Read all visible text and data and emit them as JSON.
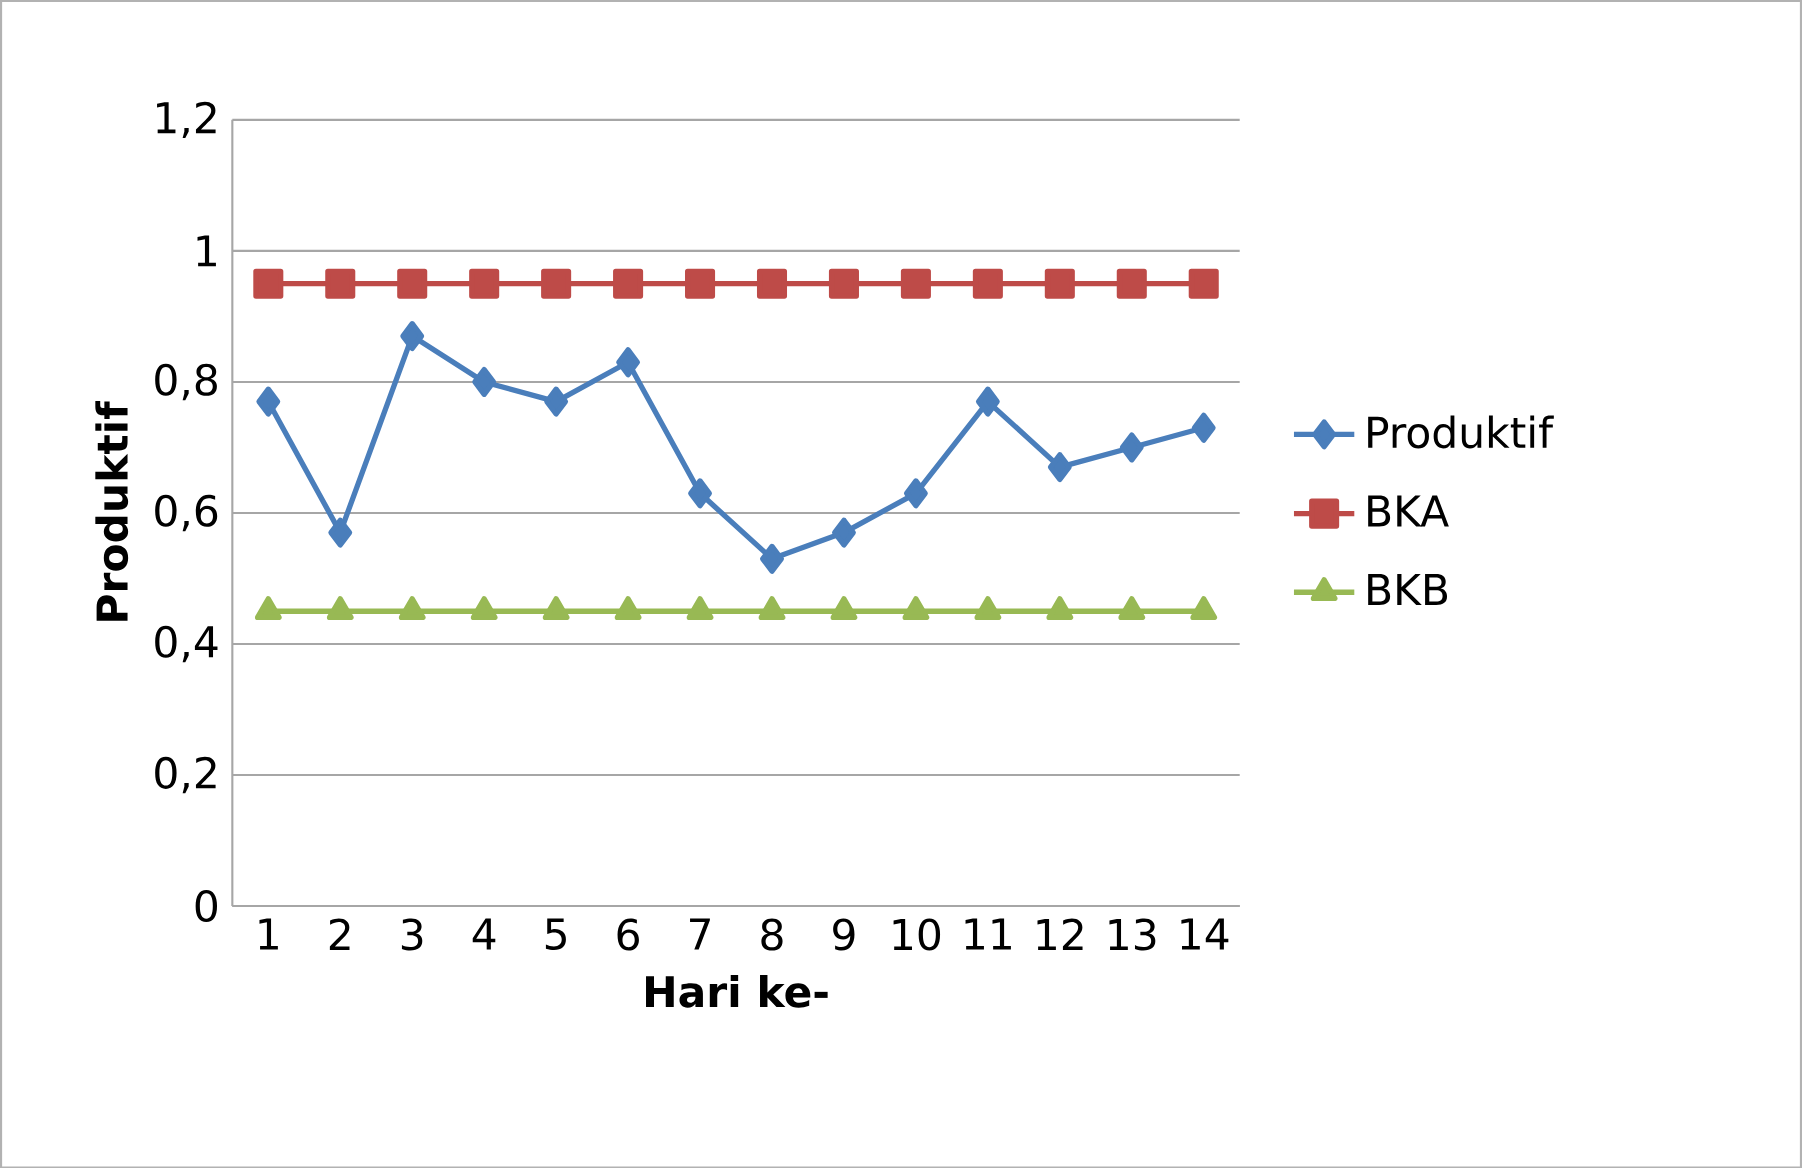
{
  "chart_data": {
    "type": "line",
    "xlabel": "Hari ke-",
    "ylabel": "Produktif",
    "categories": [
      "1",
      "2",
      "3",
      "4",
      "5",
      "6",
      "7",
      "8",
      "9",
      "10",
      "11",
      "12",
      "13",
      "14"
    ],
    "series": [
      {
        "name": "Produktif",
        "color": "#4a7ebb",
        "marker": "diamond",
        "values": [
          0.77,
          0.57,
          0.87,
          0.8,
          0.77,
          0.83,
          0.63,
          0.53,
          0.57,
          0.63,
          0.77,
          0.67,
          0.7,
          0.73
        ]
      },
      {
        "name": "BKA",
        "color": "#be4b48",
        "marker": "square",
        "values": [
          0.95,
          0.95,
          0.95,
          0.95,
          0.95,
          0.95,
          0.95,
          0.95,
          0.95,
          0.95,
          0.95,
          0.95,
          0.95,
          0.95
        ]
      },
      {
        "name": "BKB",
        "color": "#98b954",
        "marker": "triangle",
        "values": [
          0.45,
          0.45,
          0.45,
          0.45,
          0.45,
          0.45,
          0.45,
          0.45,
          0.45,
          0.45,
          0.45,
          0.45,
          0.45,
          0.45
        ]
      }
    ],
    "ylim": [
      0,
      1.2
    ],
    "yticks": [
      {
        "value": 0,
        "label": "0"
      },
      {
        "value": 0.2,
        "label": "0,2"
      },
      {
        "value": 0.4,
        "label": "0,4"
      },
      {
        "value": 0.6,
        "label": "0,6"
      },
      {
        "value": 0.8,
        "label": "0,8"
      },
      {
        "value": 1,
        "label": "1"
      },
      {
        "value": 1.2,
        "label": "1,2"
      }
    ],
    "grid": "y",
    "legend": "right",
    "line_style": "solid"
  }
}
